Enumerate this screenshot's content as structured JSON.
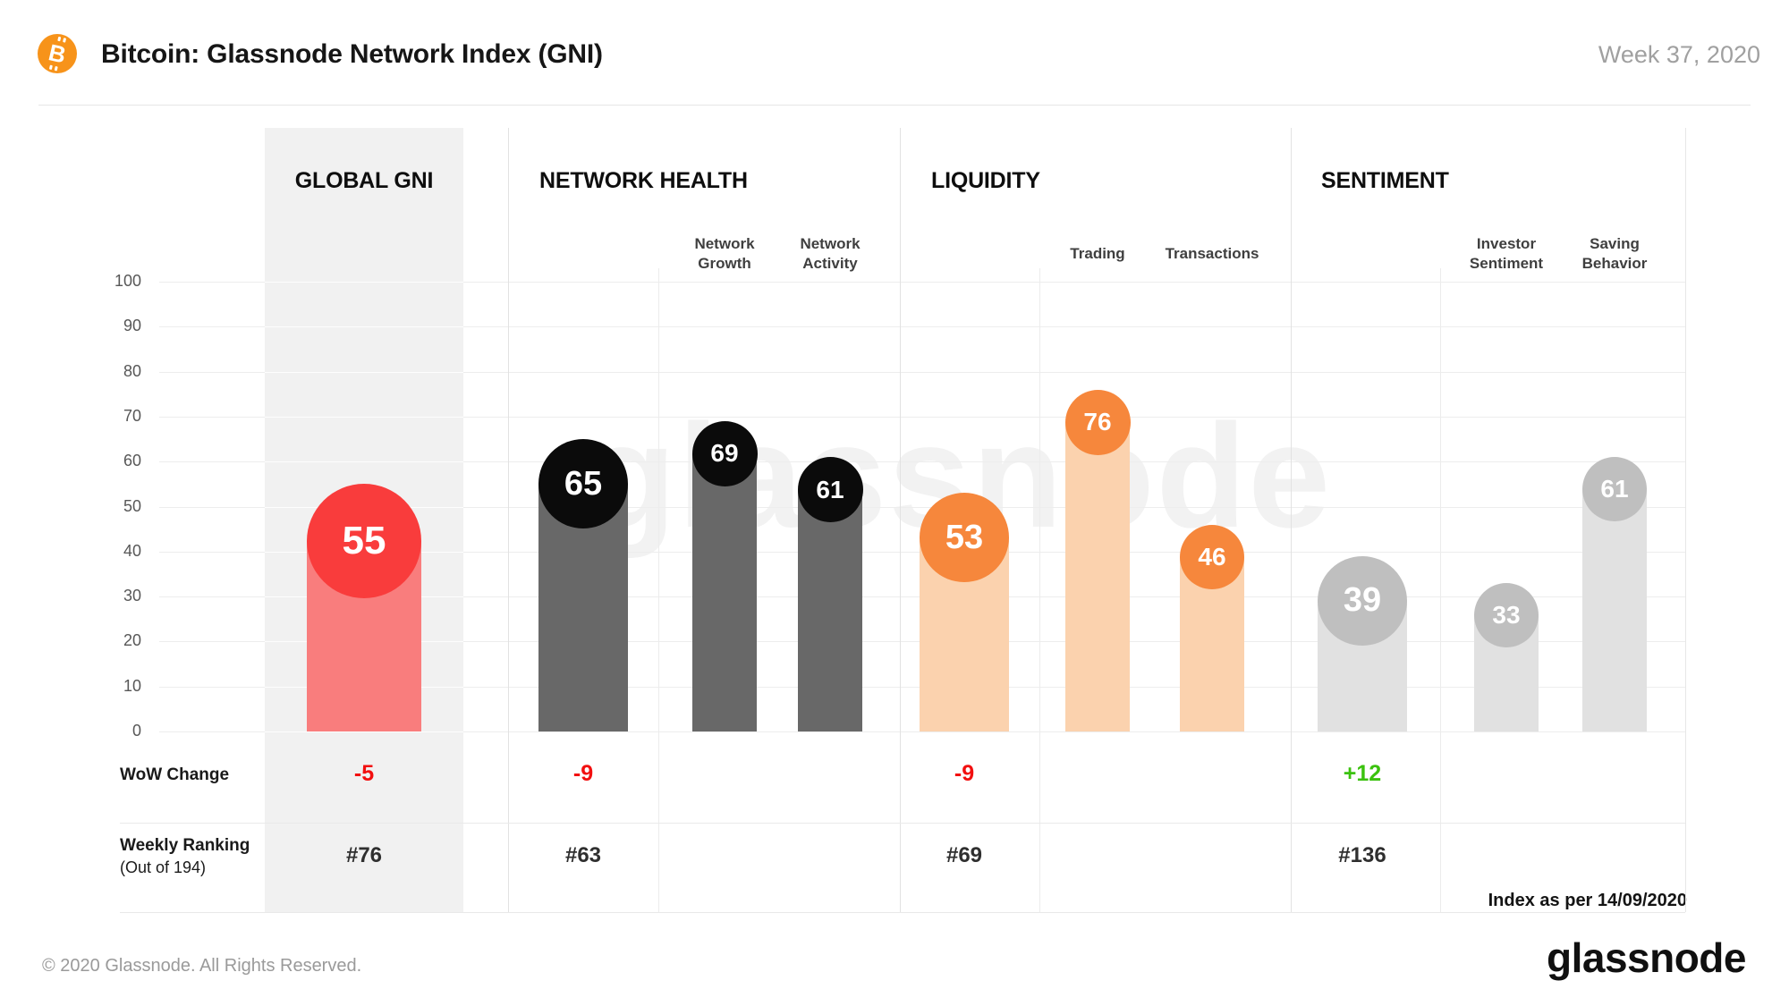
{
  "header": {
    "title": "Bitcoin: Glassnode Network Index (GNI)",
    "period": "Week 37, 2020"
  },
  "watermark_text": "glassnode",
  "rows": {
    "wow_label": "WoW Change",
    "ranking_label": "Weekly Ranking",
    "ranking_sublabel": "(Out of 194)",
    "index_note": "Index as per 14/09/2020"
  },
  "footer": {
    "copyright": "© 2020 Glassnode. All Rights Reserved.",
    "brand": "glassnode"
  },
  "chart_data": {
    "type": "lollipop-bar",
    "title": "Bitcoin: Glassnode Network Index (GNI)",
    "period": "Week 37, 2020",
    "ylim": [
      0,
      100
    ],
    "yticks": [
      100,
      90,
      80,
      70,
      60,
      50,
      40,
      30,
      20,
      10,
      0
    ],
    "grid": true,
    "footnote": "Index as per 14/09/2020",
    "sections": [
      {
        "name": "GLOBAL GNI",
        "highlight": true,
        "wow_change": "-5",
        "wow_color": "#f20f0f",
        "weekly_ranking": "#76",
        "colors": {
          "circle": "#f93c3c",
          "bar": "#f97d7d",
          "value_text": "#ffffff"
        },
        "bars": [
          {
            "label": "",
            "value": 55,
            "role": "main"
          }
        ]
      },
      {
        "name": "NETWORK HEALTH",
        "highlight": false,
        "wow_change": "-9",
        "wow_color": "#f20f0f",
        "weekly_ranking": "#63",
        "colors": {
          "circle": "#0b0b0b",
          "bar": "#686868",
          "value_text": "#ffffff"
        },
        "bars": [
          {
            "label": "",
            "value": 65,
            "role": "main"
          },
          {
            "label": "Network Growth",
            "value": 69,
            "role": "sub"
          },
          {
            "label": "Network Activity",
            "value": 61,
            "role": "sub"
          }
        ]
      },
      {
        "name": "LIQUIDITY",
        "highlight": false,
        "wow_change": "-9",
        "wow_color": "#f20f0f",
        "weekly_ranking": "#69",
        "colors": {
          "circle": "#f6873c",
          "bar": "#fbd2ae",
          "value_text": "#ffffff"
        },
        "bars": [
          {
            "label": "",
            "value": 53,
            "role": "main"
          },
          {
            "label": "Trading",
            "value": 76,
            "role": "sub"
          },
          {
            "label": "Transactions",
            "value": 46,
            "role": "sub"
          }
        ]
      },
      {
        "name": "SENTIMENT",
        "highlight": false,
        "wow_change": "+12",
        "wow_color": "#3bc20e",
        "weekly_ranking": "#136",
        "colors": {
          "circle": "#bfbfbf",
          "bar": "#e1e1e1",
          "value_text": "#ffffff"
        },
        "bars": [
          {
            "label": "",
            "value": 39,
            "role": "main"
          },
          {
            "label": "Investor Sentiment",
            "value": 33,
            "role": "sub"
          },
          {
            "label": "Saving Behavior",
            "value": 61,
            "role": "sub"
          }
        ]
      }
    ]
  }
}
